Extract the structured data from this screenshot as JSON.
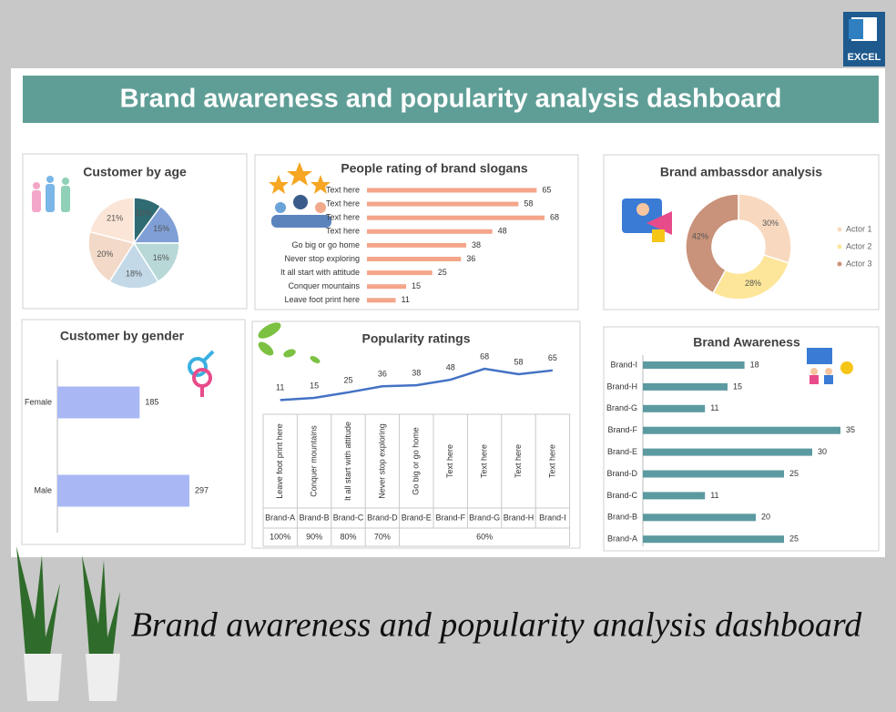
{
  "header": {
    "title": "Brand awareness and popularity analysis dashboard",
    "logo": "EXCEL"
  },
  "chart_data": [
    {
      "type": "pie",
      "title": "Customer by age",
      "values": [
        10,
        15,
        16,
        18,
        20,
        21
      ],
      "value_labels": [
        "10%",
        "15%",
        "16%",
        "18%",
        "20%",
        "21%"
      ],
      "colors": [
        "#2e6b72",
        "#7f9fd6",
        "#b8d8d8",
        "#c3d9e8",
        "#f2d9c8",
        "#fbe5d6"
      ]
    },
    {
      "type": "bar",
      "title": "People rating of brand slogans",
      "categories": [
        "Text here",
        "Text here",
        "Text here",
        "Text here",
        "Go big or go home",
        "Never stop exploring",
        "It all start with attitude",
        "Conquer mountains",
        "Leave foot print here"
      ],
      "values": [
        65,
        58,
        68,
        48,
        38,
        36,
        25,
        15,
        11
      ],
      "color": "#f4a58a"
    },
    {
      "type": "donut",
      "title": "Brand ambassdor analysis",
      "categories": [
        "Actor 1",
        "Actor 2",
        "Actor 3"
      ],
      "values": [
        30,
        28,
        42
      ],
      "value_labels": [
        "30%",
        "28%",
        "42%"
      ],
      "colors": [
        "#f8d9bf",
        "#fde699",
        "#c9927a"
      ],
      "legend": "right"
    },
    {
      "type": "bar",
      "title": "Customer by gender",
      "categories": [
        "Female",
        "Male"
      ],
      "values": [
        185,
        297
      ],
      "color": "#a9b8f5"
    },
    {
      "type": "line",
      "title": "Popularity ratings",
      "categories": [
        "Leave foot print here",
        "Conquer mountains",
        "It all start with attitude",
        "Never stop exploring",
        "Go big or go home",
        "Text here",
        "Text here",
        "Text here",
        "Text here"
      ],
      "brands": [
        "Brand-A",
        "Brand-B",
        "Brand-C",
        "Brand-D",
        "Brand-E",
        "Brand-F",
        "Brand-G",
        "Brand-H",
        "Brand-I"
      ],
      "groups": [
        "100%",
        "90%",
        "80%",
        "70%",
        "60%"
      ],
      "values": [
        11,
        15,
        25,
        36,
        38,
        48,
        68,
        58,
        65
      ],
      "color": "#4472c4"
    },
    {
      "type": "bar",
      "title": "Brand Awareness",
      "categories": [
        "Brand-I",
        "Brand-H",
        "Brand-G",
        "Brand-F",
        "Brand-E",
        "Brand-D",
        "Brand-C",
        "Brand-B",
        "Brand-A"
      ],
      "values": [
        18,
        15,
        11,
        35,
        30,
        25,
        11,
        20,
        25
      ],
      "color": "#5b9aa0"
    }
  ],
  "caption": "Brand awareness and popularity analysis dashboard"
}
